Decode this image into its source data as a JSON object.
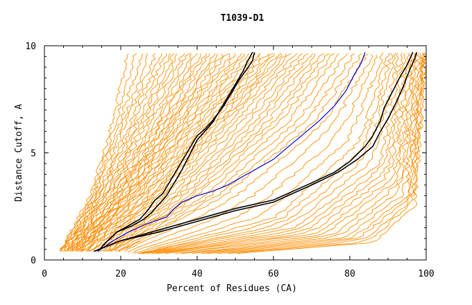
{
  "chart_data": {
    "type": "line",
    "title": "T1039-D1",
    "xlabel": "Percent of Residues (CA)",
    "ylabel": "Distance Cutoff, A",
    "xlim": [
      0,
      100
    ],
    "ylim": [
      0,
      10
    ],
    "x_ticks": [
      0,
      20,
      40,
      60,
      80,
      100
    ],
    "y_ticks": [
      0,
      5,
      10
    ],
    "background_series": {
      "color": "#ff8c00",
      "description_count": 70,
      "anchors": [
        {
          "x": [
            4,
            12,
            18,
            22
          ],
          "y": [
            0.4,
            3,
            6.5,
            9.7
          ]
        },
        {
          "x": [
            5,
            14,
            22,
            30
          ],
          "y": [
            0.4,
            3,
            6.5,
            9.7
          ]
        },
        {
          "x": [
            6,
            16,
            26,
            35
          ],
          "y": [
            0.4,
            3,
            6.5,
            9.7
          ]
        },
        {
          "x": [
            7,
            18,
            30,
            40
          ],
          "y": [
            0.4,
            3,
            6.5,
            9.7
          ]
        },
        {
          "x": [
            8,
            20,
            33,
            45
          ],
          "y": [
            0.4,
            3,
            6.5,
            9.7
          ]
        },
        {
          "x": [
            9,
            22,
            36,
            50
          ],
          "y": [
            0.4,
            3,
            6.5,
            9.7
          ]
        },
        {
          "x": [
            10,
            24,
            40,
            55
          ],
          "y": [
            0.4,
            3,
            6.5,
            9.7
          ]
        },
        {
          "x": [
            12,
            27,
            44,
            60
          ],
          "y": [
            0.4,
            3,
            6.5,
            9.7
          ]
        },
        {
          "x": [
            14,
            30,
            48,
            64
          ],
          "y": [
            0.4,
            3,
            6.5,
            9.7
          ]
        },
        {
          "x": [
            16,
            35,
            55,
            70
          ],
          "y": [
            0.4,
            3,
            6.5,
            9.7
          ]
        },
        {
          "x": [
            18,
            40,
            62,
            76
          ],
          "y": [
            0.4,
            3,
            6.5,
            9.7
          ]
        },
        {
          "x": [
            20,
            48,
            72,
            84
          ],
          "y": [
            0.4,
            3,
            6.5,
            9.7
          ]
        },
        {
          "x": [
            24,
            60,
            82,
            90
          ],
          "y": [
            0.3,
            2,
            5.5,
            9.7
          ]
        },
        {
          "x": [
            26,
            66,
            88,
            94
          ],
          "y": [
            0.3,
            1.5,
            4.5,
            9.7
          ]
        },
        {
          "x": [
            30,
            72,
            92,
            97
          ],
          "y": [
            0.3,
            1.2,
            3.8,
            9.7
          ]
        },
        {
          "x": [
            40,
            80,
            95,
            99
          ],
          "y": [
            0.3,
            1.0,
            3.0,
            9.7
          ]
        },
        {
          "x": [
            50,
            86,
            97,
            100
          ],
          "y": [
            0.3,
            0.8,
            2.5,
            9.7
          ]
        }
      ]
    },
    "highlight_series": [
      {
        "name": "black-left-a",
        "color": "#000000",
        "x": [
          14,
          16,
          19,
          22,
          25,
          27,
          29,
          31,
          33,
          35,
          37,
          39,
          40,
          42,
          44,
          47,
          49,
          51,
          53,
          54.5,
          55
        ],
        "y": [
          0.4,
          0.8,
          1.3,
          1.6,
          1.9,
          2.3,
          2.8,
          3.1,
          3.7,
          4.3,
          4.9,
          5.5,
          5.8,
          6.1,
          6.5,
          7.2,
          7.8,
          8.4,
          8.9,
          9.3,
          9.7
        ]
      },
      {
        "name": "black-left-b",
        "color": "#000000",
        "x": [
          14,
          16,
          19,
          23,
          26,
          28,
          30,
          32,
          34,
          36,
          38,
          40,
          42,
          44,
          46,
          48,
          50,
          52,
          53,
          54.5
        ],
        "y": [
          0.4,
          0.8,
          1.3,
          1.6,
          1.9,
          2.2,
          2.6,
          3.0,
          3.6,
          4.2,
          4.9,
          5.6,
          6.0,
          6.4,
          7.0,
          7.6,
          8.2,
          8.8,
          9.2,
          9.7
        ]
      },
      {
        "name": "blue",
        "color": "#0000cc",
        "x": [
          14,
          18,
          22,
          27,
          32,
          34,
          36,
          40,
          44,
          48,
          52,
          56,
          60,
          64,
          68,
          72,
          76,
          79,
          81,
          83,
          84
        ],
        "y": [
          0.4,
          0.9,
          1.3,
          1.7,
          2.0,
          2.4,
          2.7,
          3.0,
          3.2,
          3.5,
          3.9,
          4.3,
          4.7,
          5.3,
          5.9,
          6.5,
          7.2,
          7.9,
          8.6,
          9.2,
          9.7
        ]
      },
      {
        "name": "black-right-a",
        "color": "#000000",
        "x": [
          13,
          20,
          30,
          40,
          50,
          60,
          70,
          76,
          80,
          84,
          86,
          88,
          89,
          91,
          93,
          95,
          96,
          96.5
        ],
        "y": [
          0.4,
          0.9,
          1.4,
          1.9,
          2.4,
          2.8,
          3.6,
          4.1,
          4.6,
          5.3,
          5.8,
          6.5,
          7.1,
          7.8,
          8.5,
          9.1,
          9.5,
          9.7
        ]
      },
      {
        "name": "black-right-b",
        "color": "#000000",
        "x": [
          13,
          20,
          30,
          40,
          50,
          60,
          70,
          77,
          82,
          86,
          88,
          90,
          92,
          94,
          95.5,
          97,
          97.5
        ],
        "y": [
          0.4,
          0.9,
          1.3,
          1.8,
          2.3,
          2.7,
          3.5,
          4.1,
          4.7,
          5.3,
          6.0,
          6.6,
          7.3,
          8.1,
          8.8,
          9.4,
          9.7
        ]
      }
    ]
  }
}
